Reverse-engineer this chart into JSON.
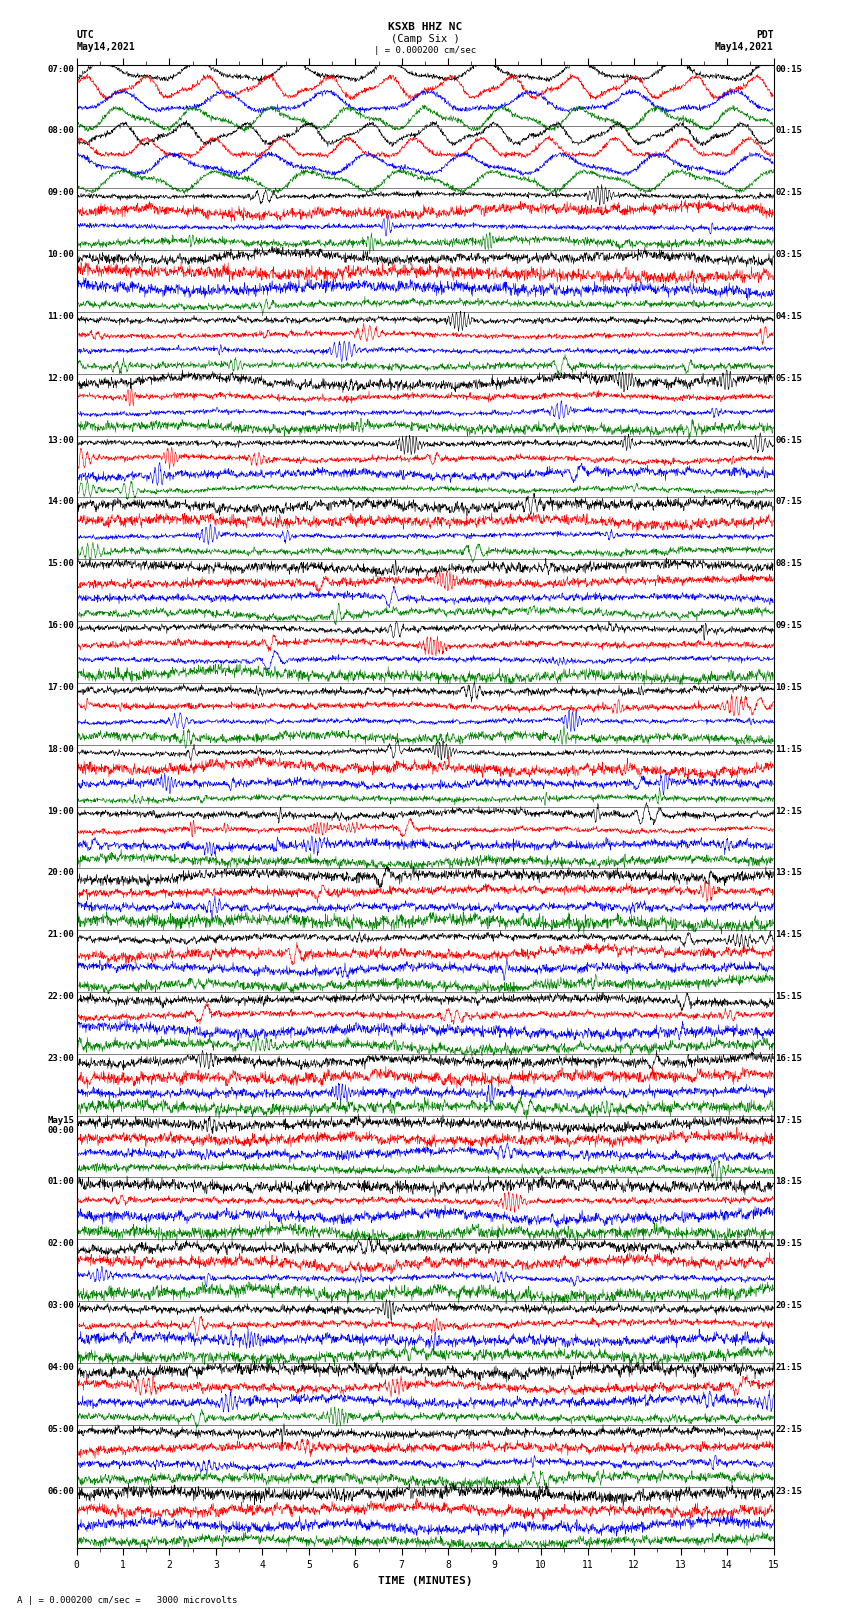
{
  "title_center": "KSXB HHZ NC",
  "subtitle_center": "(Camp Six )",
  "title_left1": "UTC",
  "title_left2": "May14,2021",
  "title_right1": "PDT",
  "title_right2": "May14,2021",
  "scale_label": "| = 0.000200 cm/sec",
  "bottom_label": "A | = 0.000200 cm/sec =   3000 microvolts",
  "xlabel": "TIME (MINUTES)",
  "xlim": [
    0,
    15
  ],
  "xticks": [
    0,
    1,
    2,
    3,
    4,
    5,
    6,
    7,
    8,
    9,
    10,
    11,
    12,
    13,
    14,
    15
  ],
  "background_color": "#ffffff",
  "trace_colors": [
    "black",
    "red",
    "blue",
    "green"
  ],
  "num_groups": 24,
  "traces_per_group": 4,
  "fig_width": 8.5,
  "fig_height": 16.13,
  "left_times": [
    "07:00",
    "08:00",
    "09:00",
    "10:00",
    "11:00",
    "12:00",
    "13:00",
    "14:00",
    "15:00",
    "16:00",
    "17:00",
    "18:00",
    "19:00",
    "20:00",
    "21:00",
    "22:00",
    "23:00",
    "May15\n00:00",
    "01:00",
    "02:00",
    "03:00",
    "04:00",
    "05:00",
    "06:00"
  ],
  "right_times": [
    "00:15",
    "01:15",
    "02:15",
    "03:15",
    "04:15",
    "05:15",
    "06:15",
    "07:15",
    "08:15",
    "09:15",
    "10:15",
    "11:15",
    "12:15",
    "13:15",
    "14:15",
    "15:15",
    "16:15",
    "17:15",
    "18:15",
    "19:15",
    "20:15",
    "21:15",
    "22:15",
    "23:15"
  ]
}
